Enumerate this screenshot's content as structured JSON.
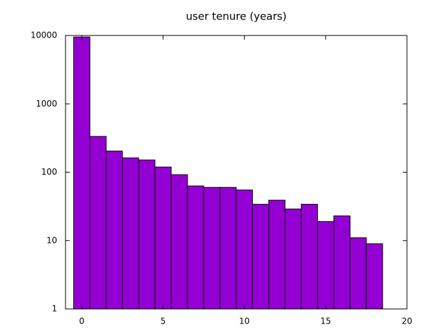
{
  "chart_data": {
    "type": "histogram",
    "title": "user tenure (years)",
    "bins": [
      -0.5,
      0.5,
      1.5,
      2.5,
      3.5,
      4.5,
      5.5,
      6.5,
      7.5,
      8.5,
      9.5,
      10.5,
      11.5,
      12.5,
      13.5,
      14.5,
      15.5,
      16.5,
      17.5,
      18.5
    ],
    "values": [
      9500,
      334,
      204,
      162,
      151,
      119,
      92,
      63,
      60,
      60,
      55,
      34,
      39,
      29,
      34,
      19,
      23,
      11,
      9
    ],
    "color": "#9400d3",
    "xlim": [
      -1,
      20
    ],
    "xticks": [
      0,
      5,
      10,
      15,
      20
    ],
    "ylim": [
      1,
      10000
    ],
    "yticks": [
      1,
      10,
      100,
      1000,
      10000
    ],
    "log_y": true
  }
}
